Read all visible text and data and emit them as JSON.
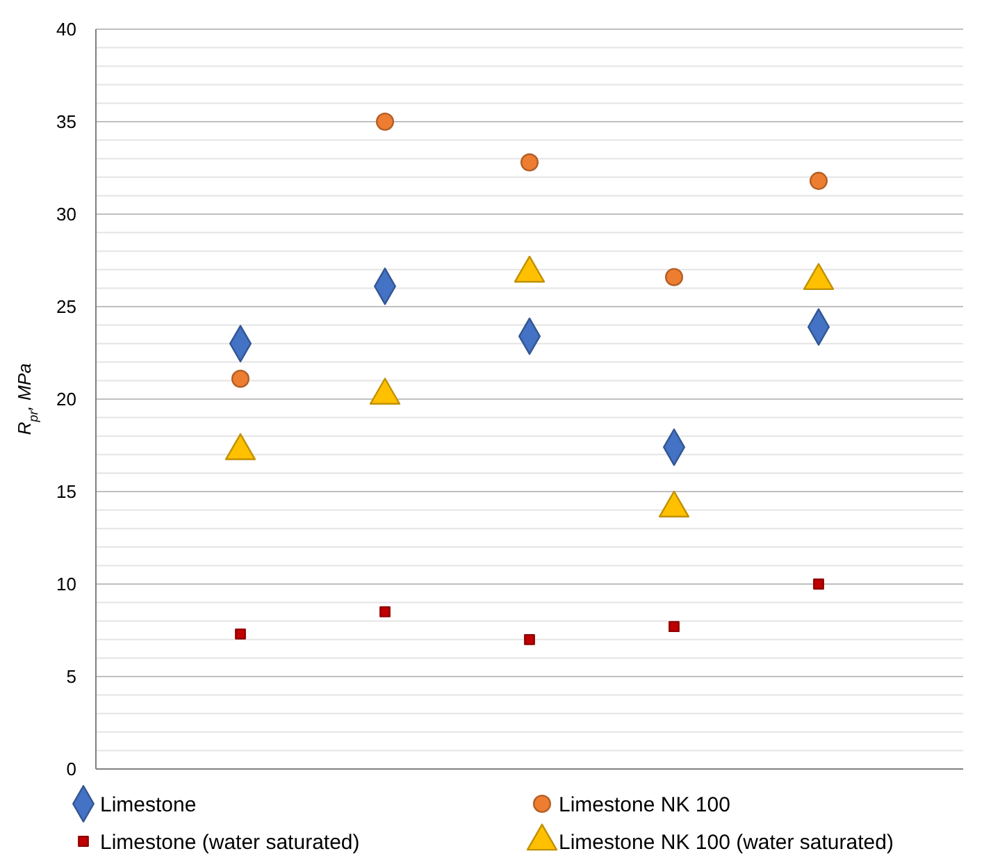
{
  "chart_data": {
    "type": "scatter",
    "ylabel": "R$_{pr}$, MPa",
    "categories": [
      null,
      null,
      null,
      null,
      null
    ],
    "ylim": [
      0,
      40
    ],
    "yticks": [
      0,
      {
        "value": 1,
        "label": null
      },
      {
        "value": 2,
        "label": null
      },
      {
        "value": 3,
        "label": null
      },
      {
        "value": 4,
        "label": null
      },
      5,
      {
        "value": 6,
        "label": null
      },
      {
        "value": 7,
        "label": null
      },
      {
        "value": 8,
        "label": null
      },
      {
        "value": 9,
        "label": null
      },
      10,
      {
        "value": 11,
        "label": null
      },
      {
        "value": 12,
        "label": null
      },
      {
        "value": 13,
        "label": null
      },
      {
        "value": 14,
        "label": null
      },
      15,
      {
        "value": 16,
        "label": null
      },
      {
        "value": 17,
        "label": null
      },
      {
        "value": 18,
        "label": null
      },
      {
        "value": 19,
        "label": null
      },
      20,
      {
        "value": 21,
        "label": null
      },
      {
        "value": 22,
        "label": null
      },
      {
        "value": 23,
        "label": null
      },
      {
        "value": 24,
        "label": null
      },
      25,
      {
        "value": 26,
        "label": null
      },
      {
        "value": 27,
        "label": null
      },
      {
        "value": 28,
        "label": null
      },
      {
        "value": 29,
        "label": null
      },
      30,
      {
        "value": 31,
        "label": null
      },
      {
        "value": 32,
        "label": null
      },
      {
        "value": 33,
        "label": null
      },
      {
        "value": 34,
        "label": null
      },
      35,
      {
        "value": 36,
        "label": null
      },
      {
        "value": 37,
        "label": null
      },
      {
        "value": 38,
        "label": null
      },
      {
        "value": 39,
        "label": null
      },
      40
    ],
    "grid": "y",
    "legend": "bottom",
    "series": [
      {
        "name": "Limestone",
        "color": "#4472c4",
        "marker": "diamond",
        "values": [
          23.0,
          26.1,
          23.4,
          17.4,
          23.9
        ]
      },
      {
        "name": "Limestone NK 100",
        "color": "#ed7d31",
        "marker": "circle",
        "values": [
          21.1,
          35.0,
          32.8,
          26.6,
          31.8
        ]
      },
      {
        "name": "Limestone (water saturated)",
        "color": "#c00000",
        "marker": "square",
        "values": [
          7.3,
          8.5,
          7.0,
          7.7,
          10.0
        ]
      },
      {
        "name": "Limestone NK 100 (water saturated)",
        "color": "#ffc000",
        "marker": "triangle",
        "values": [
          17.2,
          20.2,
          26.8,
          14.1,
          26.4
        ]
      }
    ]
  }
}
